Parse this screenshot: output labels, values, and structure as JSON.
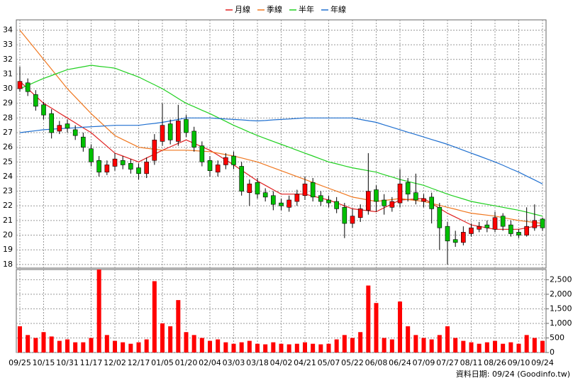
{
  "chart_data": {
    "type": "candlestick",
    "legend": "top",
    "grid": true,
    "footnote": "資料日期: 09/24 (Goodinfo.tw)",
    "categories": [
      "09/25",
      null,
      null,
      "10/15",
      null,
      null,
      "10/31",
      null,
      null,
      "11/17",
      null,
      null,
      "12/02",
      null,
      null,
      "12/17",
      null,
      null,
      "01/05",
      null,
      null,
      "01/20",
      null,
      null,
      "02/04",
      null,
      null,
      "03/03",
      null,
      null,
      "03/18",
      null,
      null,
      "04/02",
      null,
      null,
      "04/21",
      null,
      null,
      "05/07",
      null,
      null,
      "05/22",
      null,
      null,
      "06/08",
      null,
      null,
      "06/24",
      null,
      null,
      "07/09",
      null,
      null,
      "07/27",
      null,
      null,
      "08/11",
      null,
      null,
      "08/26",
      null,
      null,
      "09/10",
      null,
      null,
      "09/24"
    ],
    "open": [
      30.0,
      30.4,
      29.6,
      28.9,
      28.3,
      27.1,
      27.6,
      27.2,
      26.7,
      25.9,
      25.1,
      24.3,
      24.7,
      25.1,
      24.9,
      24.6,
      24.2,
      25.1,
      26.4,
      27.6,
      26.4,
      27.9,
      27.1,
      26.1,
      25.1,
      24.3,
      24.8,
      25.4,
      24.7,
      22.9,
      23.6,
      22.9,
      22.7,
      22.2,
      21.9,
      22.3,
      22.7,
      23.6,
      22.7,
      22.4,
      22.3,
      21.9,
      20.8,
      21.2,
      21.7,
      23.1,
      22.4,
      21.9,
      22.2,
      23.6,
      22.9,
      22.3,
      22.6,
      21.9,
      20.6,
      19.7,
      19.5,
      20.1,
      20.4,
      20.7,
      20.4,
      21.3,
      20.7,
      20.2,
      20.0,
      20.5,
      21.1
    ],
    "high": [
      31.5,
      30.7,
      29.9,
      29.1,
      28.6,
      27.8,
      27.9,
      27.5,
      27.0,
      26.2,
      25.4,
      25.1,
      25.6,
      25.4,
      25.2,
      24.9,
      25.3,
      26.9,
      29.0,
      27.9,
      28.9,
      28.2,
      27.4,
      26.4,
      25.4,
      25.1,
      25.6,
      25.7,
      25.0,
      23.8,
      23.9,
      23.2,
      23.0,
      22.5,
      22.7,
      23.1,
      24.0,
      23.9,
      23.0,
      22.7,
      22.6,
      22.2,
      21.8,
      22.1,
      25.6,
      23.4,
      22.8,
      22.6,
      24.5,
      23.9,
      24.2,
      22.8,
      22.9,
      22.2,
      20.9,
      20.3,
      20.6,
      20.8,
      20.9,
      21.0,
      21.6,
      21.5,
      21.0,
      20.4,
      21.9,
      22.1,
      21.2
    ],
    "low": [
      29.8,
      29.5,
      28.5,
      27.9,
      26.6,
      26.9,
      27.0,
      26.5,
      25.7,
      24.7,
      24.0,
      24.1,
      24.4,
      24.5,
      24.2,
      23.8,
      23.9,
      24.8,
      26.1,
      26.2,
      26.1,
      26.7,
      25.7,
      24.7,
      24.0,
      24.0,
      24.5,
      24.5,
      22.7,
      22.0,
      22.5,
      22.3,
      21.7,
      21.7,
      21.6,
      22.0,
      22.4,
      22.3,
      22.0,
      21.9,
      21.5,
      19.8,
      20.5,
      20.9,
      21.4,
      21.6,
      21.4,
      21.6,
      21.9,
      22.3,
      22.1,
      21.9,
      20.8,
      19.0,
      18.0,
      19.2,
      19.3,
      19.9,
      20.2,
      20.2,
      20.2,
      20.3,
      19.9,
      19.8,
      19.9,
      20.3,
      20.3
    ],
    "close": [
      30.5,
      29.8,
      28.8,
      28.2,
      27.0,
      27.5,
      27.3,
      26.8,
      26.0,
      25.0,
      24.3,
      24.8,
      25.2,
      24.8,
      24.5,
      24.2,
      25.0,
      26.5,
      27.5,
      26.5,
      27.8,
      27.0,
      26.0,
      25.0,
      24.4,
      24.8,
      25.3,
      24.8,
      23.0,
      23.5,
      22.8,
      22.6,
      22.1,
      22.0,
      22.4,
      22.8,
      23.5,
      22.6,
      22.3,
      22.2,
      21.8,
      20.8,
      21.3,
      21.8,
      23.0,
      22.3,
      22.0,
      22.3,
      23.5,
      22.8,
      22.4,
      22.5,
      21.8,
      20.5,
      19.6,
      19.5,
      20.2,
      20.5,
      20.6,
      20.5,
      21.2,
      20.6,
      20.1,
      20.0,
      20.6,
      21.0,
      20.5
    ],
    "up_color": "#ff0000",
    "down_color": "#00c000",
    "ylim": [
      17.75,
      34.7
    ],
    "yticks": [
      18,
      19,
      20,
      21,
      22,
      23,
      24,
      25,
      26,
      27,
      28,
      29,
      30,
      31,
      32,
      33,
      34
    ],
    "series": [
      {
        "name": "月線",
        "color": "#e02020",
        "values": [
          30.5,
          30.0,
          29.5,
          29.0,
          28.67,
          28.33,
          28.0,
          27.67,
          27.33,
          27.0,
          26.53,
          26.07,
          25.6,
          25.4,
          25.2,
          25.0,
          25.27,
          25.53,
          25.8,
          26.03,
          26.27,
          26.5,
          26.27,
          26.03,
          25.8,
          25.47,
          25.13,
          24.8,
          24.43,
          24.07,
          23.7,
          23.4,
          23.1,
          22.8,
          22.8,
          22.8,
          22.8,
          22.67,
          22.53,
          22.4,
          22.2,
          22.0,
          21.8,
          21.73,
          21.67,
          21.6,
          21.87,
          22.13,
          22.4,
          22.43,
          22.47,
          22.5,
          22.17,
          21.83,
          21.5,
          21.23,
          20.97,
          20.7,
          20.6,
          20.5,
          20.4,
          20.4,
          20.4,
          20.4,
          20.5,
          20.6,
          20.7
        ]
      },
      {
        "name": "季線",
        "color": "#f07820",
        "values": [
          34.0,
          33.33,
          32.67,
          32.0,
          31.33,
          30.67,
          30.0,
          29.43,
          28.87,
          28.3,
          27.8,
          27.3,
          26.8,
          26.53,
          26.27,
          26.0,
          25.93,
          25.87,
          25.8,
          25.8,
          25.8,
          25.8,
          25.77,
          25.73,
          25.7,
          25.6,
          25.5,
          25.4,
          25.27,
          25.13,
          25.0,
          24.8,
          24.6,
          24.4,
          24.2,
          24.0,
          23.8,
          23.6,
          23.4,
          23.2,
          23.0,
          22.8,
          22.6,
          22.5,
          22.4,
          22.3,
          22.37,
          22.43,
          22.5,
          22.43,
          22.37,
          22.3,
          22.17,
          22.03,
          21.9,
          21.77,
          21.63,
          21.5,
          21.43,
          21.37,
          21.3,
          21.2,
          21.1,
          21.0,
          20.93,
          20.87,
          20.8
        ]
      },
      {
        "name": "半年",
        "color": "#20d020",
        "values": [
          30.0,
          30.23,
          30.47,
          30.7,
          30.9,
          31.1,
          31.3,
          31.4,
          31.5,
          31.6,
          31.53,
          31.47,
          31.4,
          31.2,
          31.0,
          30.8,
          30.53,
          30.27,
          30.0,
          29.67,
          29.33,
          29.0,
          28.77,
          28.53,
          28.3,
          28.03,
          27.77,
          27.5,
          27.27,
          27.03,
          26.8,
          26.6,
          26.4,
          26.2,
          26.0,
          25.8,
          25.6,
          25.4,
          25.2,
          25.0,
          24.87,
          24.73,
          24.6,
          24.5,
          24.4,
          24.3,
          24.13,
          23.97,
          23.8,
          23.67,
          23.53,
          23.4,
          23.2,
          23.0,
          22.8,
          22.63,
          22.47,
          22.3,
          22.2,
          22.1,
          22.0,
          21.9,
          21.8,
          21.7,
          21.57,
          21.43,
          21.3
        ]
      },
      {
        "name": "年線",
        "color": "#2070d0",
        "values": [
          27.0,
          27.07,
          27.13,
          27.2,
          27.23,
          27.27,
          27.3,
          27.33,
          27.37,
          27.4,
          27.43,
          27.47,
          27.5,
          27.5,
          27.5,
          27.5,
          27.57,
          27.63,
          27.7,
          27.8,
          27.9,
          28.0,
          28.0,
          28.0,
          28.0,
          27.97,
          27.93,
          27.9,
          27.87,
          27.83,
          27.8,
          27.83,
          27.87,
          27.9,
          27.93,
          27.97,
          28.0,
          28.0,
          28.0,
          28.0,
          28.0,
          28.0,
          28.0,
          27.9,
          27.8,
          27.7,
          27.53,
          27.37,
          27.2,
          27.03,
          26.87,
          26.7,
          26.53,
          26.37,
          26.2,
          26.0,
          25.8,
          25.6,
          25.4,
          25.2,
          25.0,
          24.77,
          24.53,
          24.3,
          24.03,
          23.77,
          23.5
        ]
      }
    ],
    "volume": {
      "color": "#ff0000",
      "values": [
        900,
        600,
        500,
        700,
        550,
        400,
        450,
        350,
        350,
        500,
        2850,
        600,
        400,
        350,
        300,
        350,
        450,
        2450,
        1000,
        900,
        1800,
        700,
        600,
        500,
        400,
        450,
        350,
        300,
        350,
        400,
        300,
        280,
        350,
        300,
        280,
        300,
        350,
        300,
        280,
        300,
        450,
        600,
        500,
        700,
        2300,
        1700,
        500,
        450,
        1750,
        900,
        600,
        500,
        450,
        600,
        900,
        500,
        400,
        350,
        300,
        350,
        400,
        300,
        350,
        300,
        600,
        500,
        400
      ],
      "ylim": [
        0,
        2850
      ],
      "yticks": [
        0,
        500,
        {
          "value": 1000,
          "label": "1,000"
        },
        {
          "value": 1500,
          "label": "1,500"
        },
        {
          "value": 2000,
          "label": "2,000"
        },
        {
          "value": 2500,
          "label": "2,500"
        }
      ]
    }
  }
}
